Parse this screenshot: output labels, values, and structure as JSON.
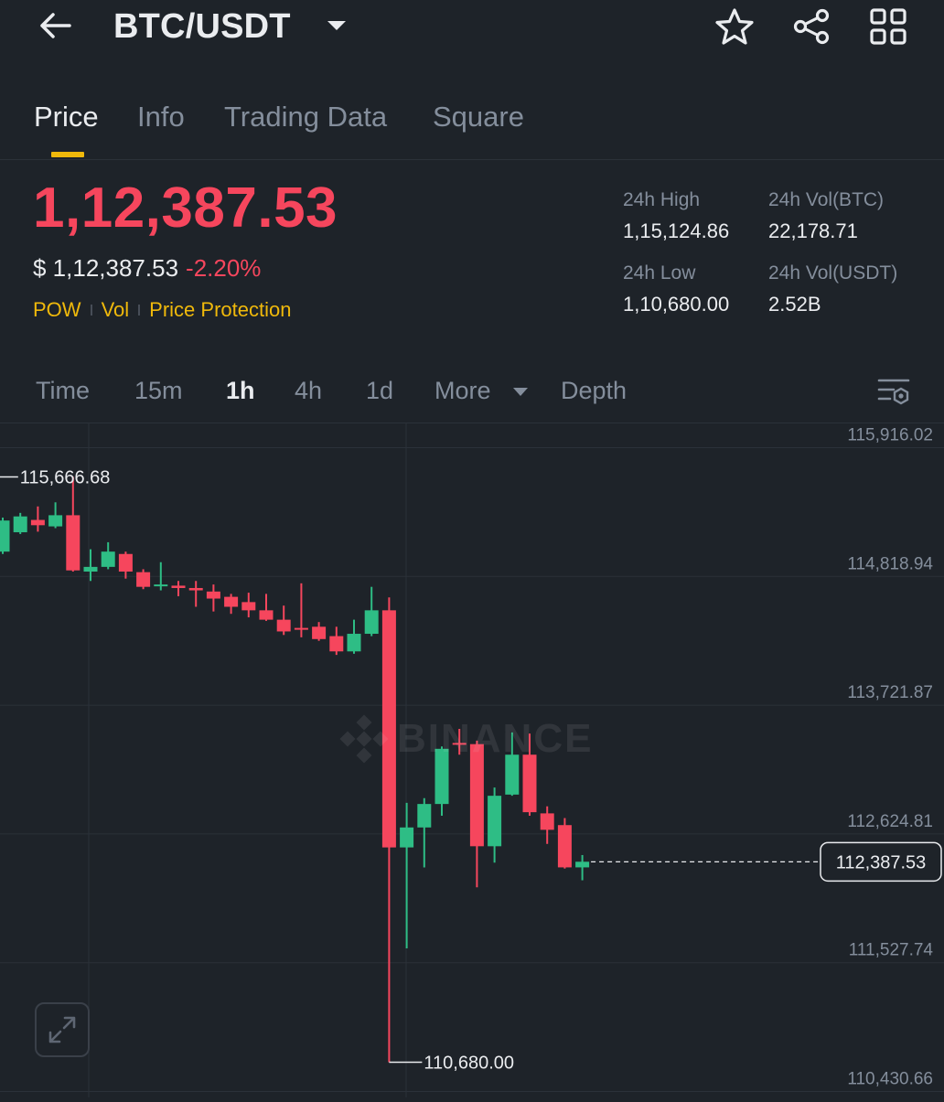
{
  "header": {
    "title": "BTC/USDT"
  },
  "tabs": [
    {
      "label": "Price",
      "active": true
    },
    {
      "label": "Info",
      "active": false
    },
    {
      "label": "Trading Data",
      "active": false
    },
    {
      "label": "Square",
      "active": false
    }
  ],
  "price": {
    "last": "1,12,387.53",
    "usd": "$ 1,12,387.53",
    "change_pct": "-2.20%",
    "tags": [
      "POW",
      "Vol",
      "Price Protection"
    ]
  },
  "stats": {
    "high_label": "24h High",
    "high_value": "1,15,124.86",
    "low_label": "24h Low",
    "low_value": "1,10,680.00",
    "vol_btc_label": "24h Vol(BTC)",
    "vol_btc_value": "22,178.71",
    "vol_usdt_label": "24h Vol(USDT)",
    "vol_usdt_value": "2.52B"
  },
  "intervals": [
    {
      "label": "Time",
      "active": false
    },
    {
      "label": "15m",
      "active": false
    },
    {
      "label": "1h",
      "active": true
    },
    {
      "label": "4h",
      "active": false
    },
    {
      "label": "1d",
      "active": false
    },
    {
      "label": "More",
      "active": false
    },
    {
      "label": "Depth",
      "active": false
    }
  ],
  "watermark": "BINANCE",
  "colors": {
    "background": "#1e2329",
    "up": "#2ebd85",
    "down": "#f6465d",
    "accent": "#f0b90b",
    "muted": "#848e9c"
  },
  "chart_data": {
    "type": "candlestick",
    "y_ticks": [
      115916.02,
      114818.94,
      113721.87,
      112624.81,
      111527.74,
      110430.66
    ],
    "y_tick_labels": [
      "115,916.02",
      "114,818.94",
      "113,721.87",
      "112,624.81",
      "111,527.74",
      "110,430.66"
    ],
    "ylim": [
      110380,
      116130
    ],
    "high_marker": {
      "value": 115666.68,
      "label": "115,666.68"
    },
    "low_marker": {
      "value": 110680.0,
      "label": "110,680.00"
    },
    "last_price": {
      "value": 112387.53,
      "label": "112,387.53"
    },
    "candles": [
      {
        "o": 115030,
        "c": 115295,
        "h": 115320,
        "l": 115010
      },
      {
        "o": 115195,
        "c": 115330,
        "h": 115360,
        "l": 115180
      },
      {
        "o": 115300,
        "c": 115255,
        "h": 115415,
        "l": 115200
      },
      {
        "o": 115245,
        "c": 115340,
        "h": 115450,
        "l": 115230
      },
      {
        "o": 115340,
        "c": 114870,
        "h": 115667,
        "l": 114860
      },
      {
        "o": 114860,
        "c": 114900,
        "h": 115050,
        "l": 114780
      },
      {
        "o": 114900,
        "c": 115030,
        "h": 115110,
        "l": 114880
      },
      {
        "o": 115010,
        "c": 114860,
        "h": 115030,
        "l": 114800
      },
      {
        "o": 114855,
        "c": 114730,
        "h": 114880,
        "l": 114710
      },
      {
        "o": 114740,
        "c": 114750,
        "h": 114940,
        "l": 114700
      },
      {
        "o": 114740,
        "c": 114720,
        "h": 114780,
        "l": 114650
      },
      {
        "o": 114720,
        "c": 114700,
        "h": 114780,
        "l": 114560
      },
      {
        "o": 114690,
        "c": 114630,
        "h": 114750,
        "l": 114520
      },
      {
        "o": 114645,
        "c": 114560,
        "h": 114670,
        "l": 114500
      },
      {
        "o": 114600,
        "c": 114530,
        "h": 114680,
        "l": 114470
      },
      {
        "o": 114530,
        "c": 114450,
        "h": 114670,
        "l": 114440
      },
      {
        "o": 114450,
        "c": 114350,
        "h": 114570,
        "l": 114320
      },
      {
        "o": 114380,
        "c": 114370,
        "h": 114760,
        "l": 114300
      },
      {
        "o": 114390,
        "c": 114285,
        "h": 114430,
        "l": 114270
      },
      {
        "o": 114310,
        "c": 114180,
        "h": 114390,
        "l": 114150
      },
      {
        "o": 114180,
        "c": 114330,
        "h": 114450,
        "l": 114160
      },
      {
        "o": 114330,
        "c": 114530,
        "h": 114730,
        "l": 114310
      },
      {
        "o": 114530,
        "c": 112510,
        "h": 114640,
        "l": 110680
      },
      {
        "o": 112510,
        "c": 112680,
        "h": 112890,
        "l": 111650
      },
      {
        "o": 112680,
        "c": 112880,
        "h": 112930,
        "l": 112340
      },
      {
        "o": 112880,
        "c": 113350,
        "h": 113370,
        "l": 112780
      },
      {
        "o": 113400,
        "c": 113390,
        "h": 113520,
        "l": 113300
      },
      {
        "o": 113390,
        "c": 112520,
        "h": 113420,
        "l": 112170
      },
      {
        "o": 112520,
        "c": 112950,
        "h": 113020,
        "l": 112380
      },
      {
        "o": 112960,
        "c": 113300,
        "h": 113490,
        "l": 112950
      },
      {
        "o": 113300,
        "c": 112810,
        "h": 113480,
        "l": 112780
      },
      {
        "o": 112800,
        "c": 112660,
        "h": 112860,
        "l": 112540
      },
      {
        "o": 112700,
        "c": 112340,
        "h": 112760,
        "l": 112330
      },
      {
        "o": 112340,
        "c": 112388,
        "h": 112445,
        "l": 112230
      }
    ]
  }
}
